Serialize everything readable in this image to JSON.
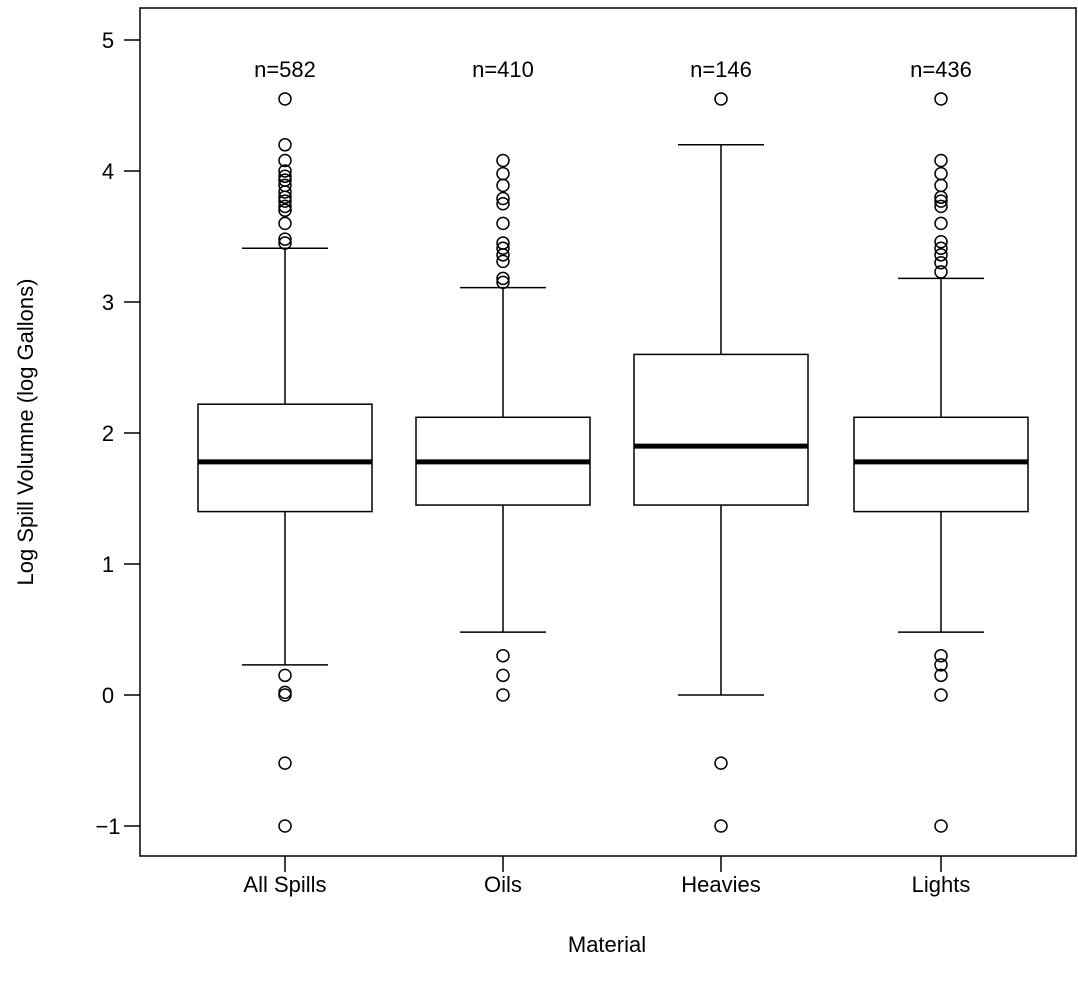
{
  "chart_data": {
    "type": "box",
    "xlabel": "Material",
    "ylabel": "Log Spill Volumne (log Gallons)",
    "ylim": [
      -1.25,
      5.25
    ],
    "yticks": [
      -1,
      0,
      1,
      2,
      3,
      4,
      5
    ],
    "ytick_labels": [
      "−1",
      "0",
      "1",
      "2",
      "3",
      "4",
      "5"
    ],
    "categories": [
      "All Spills",
      "Oils",
      "Heavies",
      "Lights"
    ],
    "counts": [
      "n=582",
      "n=410",
      "n=146",
      "n=436"
    ],
    "boxes": [
      {
        "q1": 1.4,
        "median": 1.78,
        "q3": 2.22,
        "whisker_low": 0.23,
        "whisker_high": 3.41,
        "outliers": [
          4.55,
          4.2,
          4.08,
          4.0,
          3.96,
          3.93,
          3.89,
          3.84,
          3.8,
          3.77,
          3.73,
          3.7,
          3.6,
          3.48,
          3.45,
          0.15,
          0.02,
          0.0,
          -0.52,
          -1.0
        ]
      },
      {
        "q1": 1.45,
        "median": 1.78,
        "q3": 2.12,
        "whisker_low": 0.48,
        "whisker_high": 3.11,
        "outliers": [
          4.08,
          3.98,
          3.89,
          3.79,
          3.75,
          3.6,
          3.45,
          3.41,
          3.36,
          3.31,
          3.18,
          3.15,
          0.3,
          0.15,
          0.0
        ]
      },
      {
        "q1": 1.45,
        "median": 1.9,
        "q3": 2.6,
        "whisker_low": 0.0,
        "whisker_high": 4.2,
        "outliers": [
          4.55,
          -0.52,
          -1.0
        ]
      },
      {
        "q1": 1.4,
        "median": 1.78,
        "q3": 2.12,
        "whisker_low": 0.48,
        "whisker_high": 3.18,
        "outliers": [
          4.55,
          4.08,
          3.98,
          3.89,
          3.8,
          3.77,
          3.73,
          3.6,
          3.46,
          3.41,
          3.36,
          3.3,
          3.23,
          0.3,
          0.23,
          0.15,
          0.0,
          -1.0
        ]
      }
    ]
  }
}
